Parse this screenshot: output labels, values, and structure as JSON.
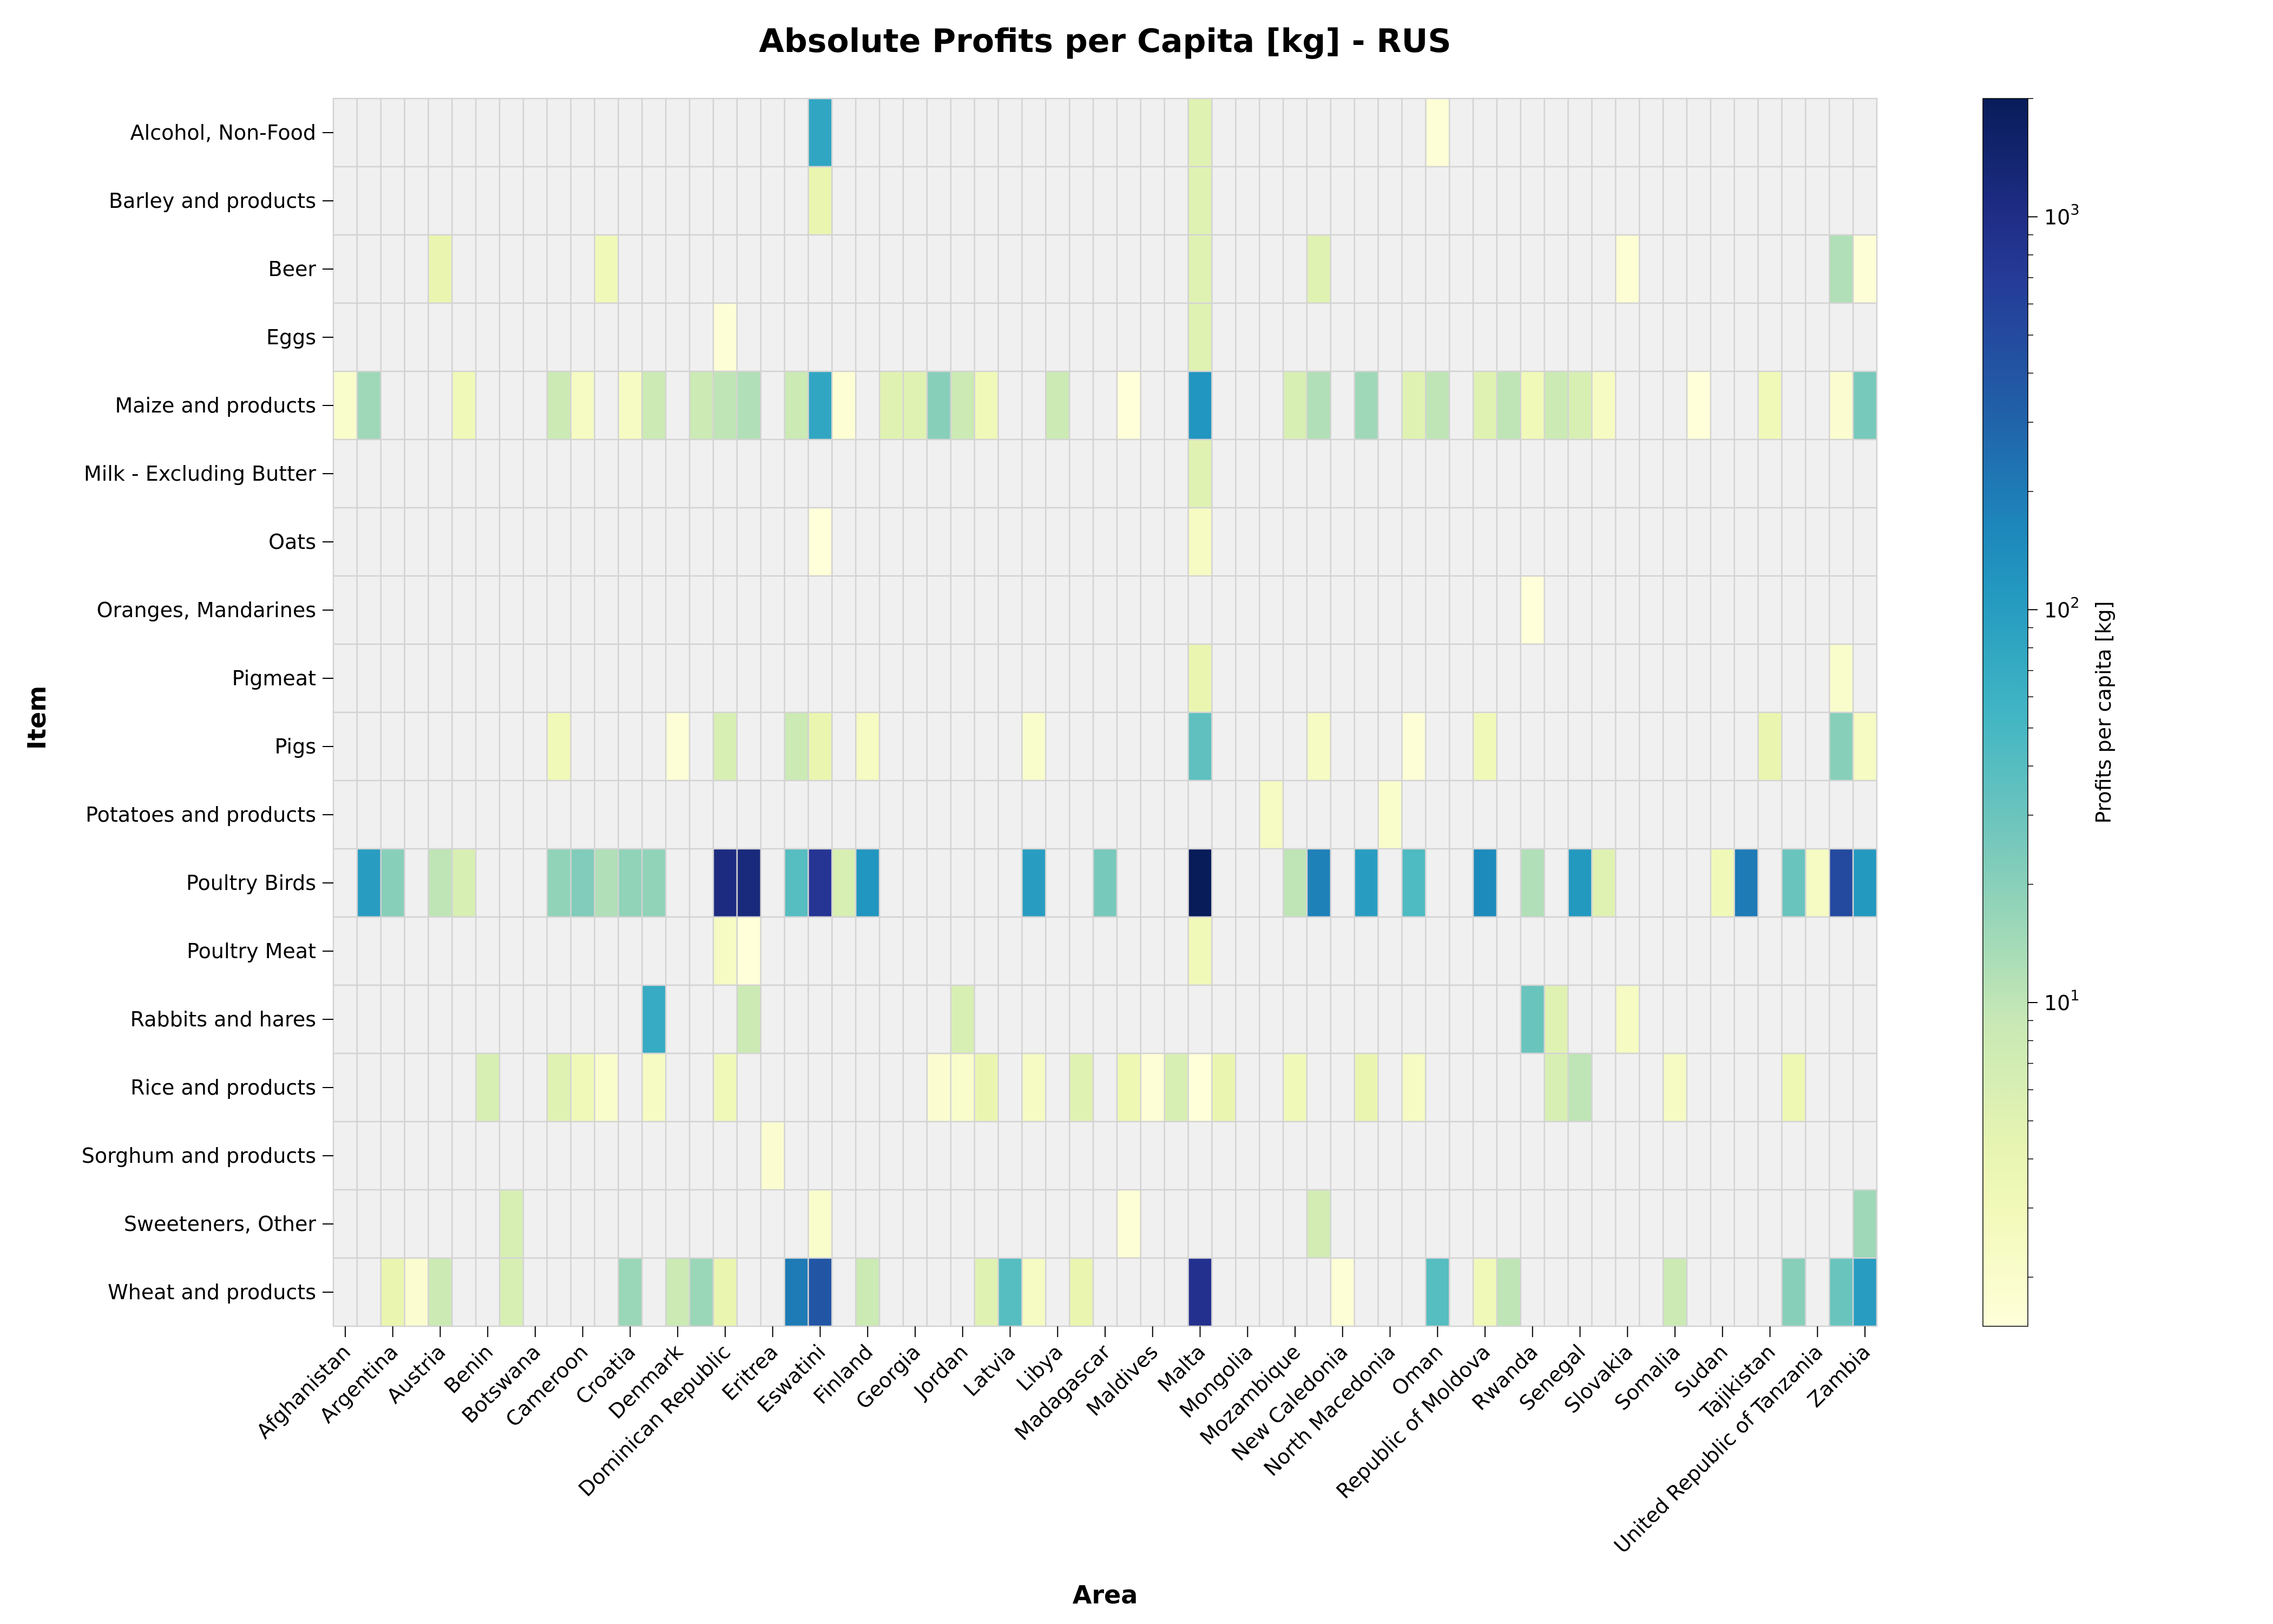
{
  "chart_data": {
    "type": "heatmap",
    "title": "Absolute Profits per Capita [kg] - RUS",
    "xlabel": "Area",
    "ylabel": "Item",
    "colorbar": {
      "label": "Profits per capita [kg]",
      "scale": "log",
      "range": [
        1.5,
        2000
      ],
      "colormap": "YlGnBu",
      "tick_values": [
        10,
        100,
        1000
      ],
      "tick_labels": [
        "10",
        "10",
        "10"
      ],
      "tick_exponents": [
        "1",
        "2",
        "3"
      ]
    },
    "x_tick_labels": [
      "Afghanistan",
      "Argentina",
      "Austria",
      "Benin",
      "Botswana",
      "Cameroon",
      "Croatia",
      "Denmark",
      "Dominican Republic",
      "Eritrea",
      "Eswatini",
      "Finland",
      "Georgia",
      "Jordan",
      "Latvia",
      "Libya",
      "Madagascar",
      "Maldives",
      "Malta",
      "Mongolia",
      "Mozambique",
      "New Caledonia",
      "North Macedonia",
      "Oman",
      "Republic of Moldova",
      "Rwanda",
      "Senegal",
      "Slovakia",
      "Somalia",
      "Sudan",
      "Tajikistan",
      "United Republic of Tanzania",
      "Zambia"
    ],
    "x_tick_positions": [
      0,
      2,
      4,
      6,
      8,
      10,
      12,
      14,
      16,
      18,
      20,
      22,
      24,
      26,
      28,
      30,
      32,
      34,
      36,
      38,
      40,
      42,
      44,
      46,
      48,
      50,
      52,
      54,
      56,
      58,
      60,
      62,
      64
    ],
    "n_columns": 65,
    "items": [
      "Alcohol, Non-Food",
      "Barley and products",
      "Beer",
      "Eggs",
      "Maize and products",
      "Milk - Excluding Butter",
      "Oats",
      "Oranges, Mandarines",
      "Pigmeat",
      "Pigs",
      "Potatoes and products",
      "Poultry Birds",
      "Poultry Meat",
      "Rabbits and hares",
      "Rice and products",
      "Sorghum and products",
      "Sweeteners, Other",
      "Wheat and products"
    ],
    "missing_color": "#f0f0f0",
    "cells": [
      [
        0,
        20,
        80
      ],
      [
        0,
        36,
        5
      ],
      [
        0,
        46,
        1.6
      ],
      [
        1,
        20,
        4
      ],
      [
        1,
        36,
        5
      ],
      [
        2,
        4,
        4
      ],
      [
        2,
        11,
        3
      ],
      [
        2,
        36,
        5
      ],
      [
        2,
        41,
        5
      ],
      [
        2,
        54,
        1.7
      ],
      [
        2,
        63,
        12
      ],
      [
        2,
        64,
        1.6
      ],
      [
        3,
        16,
        1.6
      ],
      [
        3,
        36,
        5
      ],
      [
        4,
        0,
        2
      ],
      [
        4,
        1,
        15
      ],
      [
        4,
        5,
        3
      ],
      [
        4,
        9,
        8
      ],
      [
        4,
        10,
        2.5
      ],
      [
        4,
        12,
        2.5
      ],
      [
        4,
        13,
        8
      ],
      [
        4,
        15,
        8
      ],
      [
        4,
        16,
        10
      ],
      [
        4,
        17,
        12
      ],
      [
        4,
        19,
        8
      ],
      [
        4,
        20,
        80
      ],
      [
        4,
        21,
        1.7
      ],
      [
        4,
        23,
        5
      ],
      [
        4,
        24,
        5
      ],
      [
        4,
        25,
        20
      ],
      [
        4,
        26,
        8
      ],
      [
        4,
        27,
        3
      ],
      [
        4,
        30,
        8
      ],
      [
        4,
        33,
        1.5
      ],
      [
        4,
        36,
        120
      ],
      [
        4,
        40,
        6
      ],
      [
        4,
        41,
        12
      ],
      [
        4,
        43,
        15
      ],
      [
        4,
        45,
        5
      ],
      [
        4,
        46,
        10
      ],
      [
        4,
        48,
        5
      ],
      [
        4,
        49,
        10
      ],
      [
        4,
        50,
        3
      ],
      [
        4,
        51,
        8
      ],
      [
        4,
        52,
        6
      ],
      [
        4,
        53,
        2.5
      ],
      [
        4,
        57,
        1.5
      ],
      [
        4,
        60,
        3
      ],
      [
        4,
        63,
        1.8
      ],
      [
        4,
        64,
        25
      ],
      [
        5,
        36,
        5
      ],
      [
        6,
        20,
        1.5
      ],
      [
        6,
        36,
        2.5
      ],
      [
        7,
        50,
        1.5
      ],
      [
        8,
        36,
        4
      ],
      [
        8,
        63,
        2
      ],
      [
        9,
        9,
        3
      ],
      [
        9,
        14,
        1.6
      ],
      [
        9,
        16,
        6
      ],
      [
        9,
        19,
        8
      ],
      [
        9,
        20,
        4
      ],
      [
        9,
        22,
        2.5
      ],
      [
        9,
        29,
        2
      ],
      [
        9,
        36,
        35
      ],
      [
        9,
        41,
        2.5
      ],
      [
        9,
        45,
        1.6
      ],
      [
        9,
        48,
        3
      ],
      [
        9,
        60,
        4
      ],
      [
        9,
        63,
        20
      ],
      [
        9,
        64,
        2.5
      ],
      [
        10,
        39,
        2.5
      ],
      [
        10,
        44,
        2
      ],
      [
        11,
        1,
        100
      ],
      [
        11,
        2,
        20
      ],
      [
        11,
        4,
        10
      ],
      [
        11,
        5,
        6
      ],
      [
        11,
        9,
        18
      ],
      [
        11,
        10,
        22
      ],
      [
        11,
        11,
        12
      ],
      [
        11,
        12,
        18
      ],
      [
        11,
        13,
        18
      ],
      [
        11,
        16,
        1100
      ],
      [
        11,
        17,
        1200
      ],
      [
        11,
        19,
        40
      ],
      [
        11,
        20,
        800
      ],
      [
        11,
        21,
        6
      ],
      [
        11,
        22,
        120
      ],
      [
        11,
        29,
        100
      ],
      [
        11,
        32,
        25
      ],
      [
        11,
        36,
        2000
      ],
      [
        11,
        40,
        10
      ],
      [
        11,
        41,
        180
      ],
      [
        11,
        43,
        100
      ],
      [
        11,
        45,
        45
      ],
      [
        11,
        48,
        150
      ],
      [
        11,
        50,
        12
      ],
      [
        11,
        52,
        110
      ],
      [
        11,
        53,
        5
      ],
      [
        11,
        58,
        3
      ],
      [
        11,
        59,
        200
      ],
      [
        11,
        61,
        30
      ],
      [
        11,
        62,
        2.5
      ],
      [
        11,
        63,
        500
      ],
      [
        11,
        64,
        110
      ],
      [
        12,
        16,
        2.5
      ],
      [
        12,
        17,
        1.5
      ],
      [
        12,
        36,
        3
      ],
      [
        13,
        13,
        70
      ],
      [
        13,
        17,
        8
      ],
      [
        13,
        26,
        6
      ],
      [
        13,
        50,
        30
      ],
      [
        13,
        51,
        5
      ],
      [
        13,
        54,
        2.5
      ],
      [
        14,
        6,
        6
      ],
      [
        14,
        9,
        5
      ],
      [
        14,
        10,
        3
      ],
      [
        14,
        11,
        2
      ],
      [
        14,
        13,
        2.5
      ],
      [
        14,
        16,
        3
      ],
      [
        14,
        25,
        1.8
      ],
      [
        14,
        26,
        2
      ],
      [
        14,
        27,
        4
      ],
      [
        14,
        29,
        2.5
      ],
      [
        14,
        31,
        5
      ],
      [
        14,
        33,
        3.5
      ],
      [
        14,
        34,
        1.6
      ],
      [
        14,
        35,
        6
      ],
      [
        14,
        36,
        1.5
      ],
      [
        14,
        37,
        4
      ],
      [
        14,
        40,
        3
      ],
      [
        14,
        43,
        4
      ],
      [
        14,
        45,
        2.5
      ],
      [
        14,
        51,
        6
      ],
      [
        14,
        52,
        10
      ],
      [
        14,
        56,
        2.5
      ],
      [
        14,
        61,
        3.5
      ],
      [
        15,
        18,
        1.8
      ],
      [
        16,
        7,
        6
      ],
      [
        16,
        20,
        2
      ],
      [
        16,
        33,
        1.6
      ],
      [
        16,
        41,
        7
      ],
      [
        16,
        64,
        15
      ],
      [
        17,
        2,
        4
      ],
      [
        17,
        3,
        1.8
      ],
      [
        17,
        4,
        8
      ],
      [
        17,
        7,
        6
      ],
      [
        17,
        12,
        16
      ],
      [
        17,
        14,
        8
      ],
      [
        17,
        15,
        16
      ],
      [
        17,
        16,
        4
      ],
      [
        17,
        19,
        200
      ],
      [
        17,
        20,
        400
      ],
      [
        17,
        22,
        8
      ],
      [
        17,
        27,
        5
      ],
      [
        17,
        28,
        40
      ],
      [
        17,
        29,
        2.5
      ],
      [
        17,
        31,
        4
      ],
      [
        17,
        36,
        900
      ],
      [
        17,
        42,
        1.6
      ],
      [
        17,
        46,
        40
      ],
      [
        17,
        48,
        3
      ],
      [
        17,
        49,
        10
      ],
      [
        17,
        56,
        8
      ],
      [
        17,
        61,
        20
      ],
      [
        17,
        63,
        30
      ],
      [
        17,
        64,
        100
      ]
    ]
  }
}
